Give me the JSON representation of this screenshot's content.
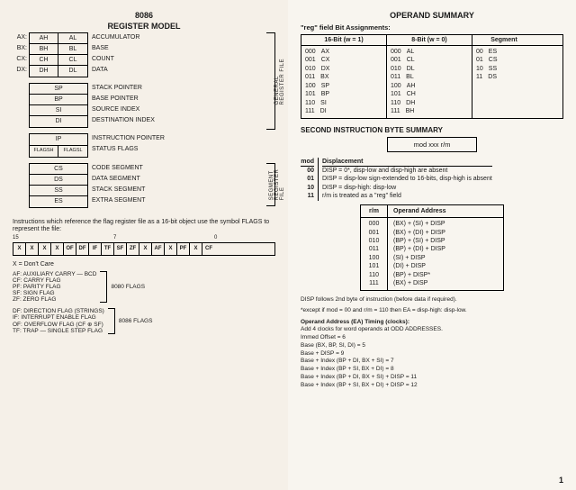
{
  "left": {
    "title1": "8086",
    "title2": "REGISTER MODEL",
    "gen_prefix": [
      "AX:",
      "BX:",
      "CX:",
      "DX:"
    ],
    "gen_hi": [
      "AH",
      "BH",
      "CH",
      "DH"
    ],
    "gen_lo": [
      "AL",
      "BL",
      "CL",
      "DL"
    ],
    "gen_desc": [
      "ACCUMULATOR",
      "BASE",
      "COUNT",
      "DATA"
    ],
    "ptr_regs": [
      "SP",
      "BP",
      "SI",
      "DI"
    ],
    "ptr_desc": [
      "STACK POINTER",
      "BASE POINTER",
      "SOURCE INDEX",
      "DESTINATION INDEX"
    ],
    "brace1": "GENERAL REGISTER FILE",
    "ip_regs": [
      "IP"
    ],
    "ip_desc": [
      "INSTRUCTION POINTER"
    ],
    "flags_hi": "FLAGSH",
    "flags_lo": "FLAGSL",
    "flags_desc": "STATUS FLAGS",
    "seg_regs": [
      "CS",
      "DS",
      "SS",
      "ES"
    ],
    "seg_desc": [
      "CODE SEGMENT",
      "DATA SEGMENT",
      "STACK SEGMENT",
      "EXTRA SEGMENT"
    ],
    "brace2": "SEGMENT REGISTER FILE",
    "note1": "Instructions which reference the flag register file as a 16-bit object use the symbol FLAGS to represent the file:",
    "bit15": "15",
    "bit7": "7",
    "bit0": "0",
    "flag_bits": [
      "X",
      "X",
      "X",
      "X",
      "OF",
      "DF",
      "IF",
      "TF",
      "SF",
      "ZF",
      "X",
      "AF",
      "X",
      "PF",
      "X",
      "CF"
    ],
    "dontcare": "X = Don't Care",
    "flags8080": [
      "AF: AUXILIARY CARRY — BCD",
      "CF: CARRY FLAG",
      "PF: PARITY FLAG",
      "SF: SIGN FLAG",
      "ZF: ZERO FLAG"
    ],
    "lbl8080": "8080 FLAGS",
    "flags8086": [
      "DF: DIRECTION FLAG (STRINGS)",
      "IF: INTERRUPT ENABLE FLAG",
      "OF: OVERFLOW FLAG (CF ⊕ SF)",
      "TF: TRAP — SINGLE STEP FLAG"
    ],
    "lbl8086": "8086 FLAGS"
  },
  "right": {
    "title": "OPERAND SUMMARY",
    "subtitle": "\"reg\" field Bit Assignments:",
    "col16": "16-Bit (w = 1)",
    "col8": "8-Bit (w = 0)",
    "colseg": "Segment",
    "bits": [
      "000",
      "001",
      "010",
      "011",
      "100",
      "101",
      "110",
      "111"
    ],
    "r16": [
      "AX",
      "CX",
      "DX",
      "BX",
      "SP",
      "BP",
      "SI",
      "DI"
    ],
    "r8": [
      "AL",
      "CL",
      "DL",
      "BL",
      "AH",
      "CH",
      "DH",
      "BH"
    ],
    "segbits": [
      "00",
      "01",
      "10",
      "11"
    ],
    "segr": [
      "ES",
      "CS",
      "SS",
      "DS"
    ],
    "h2": "SECOND INSTRUCTION BYTE SUMMARY",
    "modbox": "mod    xxx    r/m",
    "modhdr_l": "mod",
    "modhdr_r": "Displacement",
    "modl": [
      "00",
      "01",
      "10",
      "11"
    ],
    "modr": [
      "DISP = 0*, disp-low and disp-high are absent",
      "DISP = disp-low sign-extended to 16-bits, disp-high is absent",
      "DISP = disp-high: disp-low",
      "r/m is treated as a \"reg\" field"
    ],
    "rmhdr_l": "r/m",
    "rmhdr_r": "Operand Address",
    "rml": [
      "000",
      "001",
      "010",
      "011",
      "100",
      "101",
      "110",
      "111"
    ],
    "rmr": [
      "(BX) + (SI) + DISP",
      "(BX) + (DI) + DISP",
      "(BP) + (SI) + DISP",
      "(BP) + (DI) + DISP",
      "(SI) + DISP",
      "(DI) + DISP",
      "(BP) + DISP*",
      "(BX) + DISP"
    ],
    "disp_note": "DISP follows 2nd byte of instruction (before data if required).",
    "except": "*except if mod = 00 and r/m = 110 then EA = disp-high: disp-low.",
    "timing_h": "Operand Address (EA) Timing (clocks):",
    "timing": [
      "Add 4 clocks for word operands at ODD ADDRESSES.",
      "Immed Offset = 6",
      "Base (BX, BP, SI, DI) = 5",
      "Base + DISP = 9",
      "Base + Index (BP + DI, BX + SI) = 7",
      "Base + Index (BP + SI, BX + DI) = 8",
      "Base + Index (BP + DI, BX + SI) + DISP = 11",
      "Base + Index (BP + SI, BX + DI) + DISP = 12"
    ],
    "pgnum": "1"
  }
}
